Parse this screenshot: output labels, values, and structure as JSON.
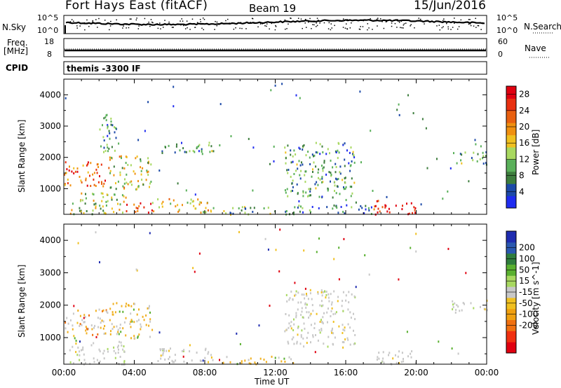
{
  "header": {
    "station": "Fort Hays East (fitACF)",
    "beam": "Beam 19",
    "date": "15/Jun/2016"
  },
  "top_panels": {
    "nsky_label": "N.Sky",
    "nsky_ticks": [
      "10^5",
      "10^0"
    ],
    "nsearch_label": "N.Search",
    "nsearch_ticks": [
      "10^5",
      "10^0"
    ],
    "freq_label": "Freq.",
    "freq_unit": "[MHz]",
    "freq_ticks": [
      "18",
      "8"
    ],
    "nave_label": "Nave",
    "nave_ticks": [
      "60",
      "0"
    ],
    "cpid_label": "CPID",
    "cpid_value": "themis -3300 IF"
  },
  "chart_data": [
    {
      "type": "heatmap",
      "name": "power-panel",
      "xlabel": "",
      "ylabel": "Slant Range [km]",
      "x_ticks": [
        "00:00",
        "04:00",
        "08:00",
        "12:00",
        "16:00",
        "20:00",
        "00:00"
      ],
      "x_range_hours": [
        0,
        24
      ],
      "y_ticks": [
        1000,
        2000,
        3000,
        4000
      ],
      "ylim": [
        180,
        4500
      ],
      "colorbar": {
        "label": "Power [dB]",
        "ticks": [
          "4",
          "8",
          "12",
          "16",
          "20",
          "24",
          "28"
        ],
        "colors": [
          "#1f2cf0",
          "#1d4aa8",
          "#3d7d3d",
          "#5ab05a",
          "#a8d860",
          "#f0c020",
          "#f09010",
          "#e86010",
          "#e83010",
          "#e00010"
        ],
        "range": [
          0,
          30
        ]
      },
      "regions": [
        {
          "t0": 0.0,
          "t1": 2.5,
          "r0": 1100,
          "r1": 1900,
          "level": 0.75
        },
        {
          "t0": 0.3,
          "t1": 3.5,
          "r0": 200,
          "r1": 900,
          "level": 0.45
        },
        {
          "t0": 2.0,
          "t1": 3.0,
          "r0": 2200,
          "r1": 3500,
          "level": 0.3
        },
        {
          "t0": 2.5,
          "t1": 5.0,
          "r0": 1000,
          "r1": 2100,
          "level": 0.5
        },
        {
          "t0": 3.5,
          "t1": 5.0,
          "r0": 250,
          "r1": 600,
          "level": 0.85
        },
        {
          "t0": 5.0,
          "t1": 8.5,
          "r0": 250,
          "r1": 700,
          "level": 0.55
        },
        {
          "t0": 5.5,
          "t1": 8.5,
          "r0": 2100,
          "r1": 2500,
          "level": 0.3
        },
        {
          "t0": 9.0,
          "t1": 13.0,
          "r0": 200,
          "r1": 450,
          "level": 0.35
        },
        {
          "t0": 12.5,
          "t1": 16.5,
          "r0": 750,
          "r1": 2500,
          "level": 0.3
        },
        {
          "t0": 13.0,
          "t1": 17.5,
          "r0": 200,
          "r1": 500,
          "level": 0.25
        },
        {
          "t0": 17.5,
          "t1": 20.0,
          "r0": 200,
          "r1": 650,
          "level": 0.9
        },
        {
          "t0": 22.0,
          "t1": 24.0,
          "r0": 1800,
          "r1": 2200,
          "level": 0.35
        }
      ]
    },
    {
      "type": "heatmap",
      "name": "velocity-panel",
      "xlabel": "Time UT",
      "ylabel": "Slant Range [km]",
      "x_ticks": [
        "00:00",
        "04:00",
        "08:00",
        "12:00",
        "16:00",
        "20:00",
        "00:00"
      ],
      "x_range_hours": [
        0,
        24
      ],
      "y_ticks": [
        1000,
        2000,
        3000,
        4000
      ],
      "ylim": [
        180,
        4500
      ],
      "colorbar": {
        "label": "Velocity [m s^-1]",
        "ticks": [
          "200",
          "100",
          "50",
          "15",
          "-15",
          "-50",
          "-100",
          "-200"
        ],
        "colors": [
          "#1f2cb0",
          "#2a58b0",
          "#2f7d3d",
          "#5ab030",
          "#a8d860",
          "#c8c8c8",
          "#f0c020",
          "#f0a010",
          "#f07010",
          "#f03010",
          "#e00010"
        ]
      },
      "regions": [
        {
          "t0": 0.0,
          "t1": 2.5,
          "r0": 1100,
          "r1": 1900,
          "level": "gray-orange"
        },
        {
          "t0": 0.3,
          "t1": 3.5,
          "r0": 200,
          "r1": 900,
          "level": "gray"
        },
        {
          "t0": 2.5,
          "t1": 5.0,
          "r0": 1000,
          "r1": 2100,
          "level": "orange"
        },
        {
          "t0": 5.0,
          "t1": 8.5,
          "r0": 250,
          "r1": 700,
          "level": "gray"
        },
        {
          "t0": 9.0,
          "t1": 13.0,
          "r0": 200,
          "r1": 450,
          "level": "orange"
        },
        {
          "t0": 12.5,
          "t1": 16.5,
          "r0": 750,
          "r1": 2500,
          "level": "gray"
        },
        {
          "t0": 17.5,
          "t1": 20.0,
          "r0": 200,
          "r1": 650,
          "level": "gray"
        },
        {
          "t0": 22.0,
          "t1": 24.0,
          "r0": 1800,
          "r1": 2200,
          "level": "gray"
        }
      ]
    }
  ]
}
